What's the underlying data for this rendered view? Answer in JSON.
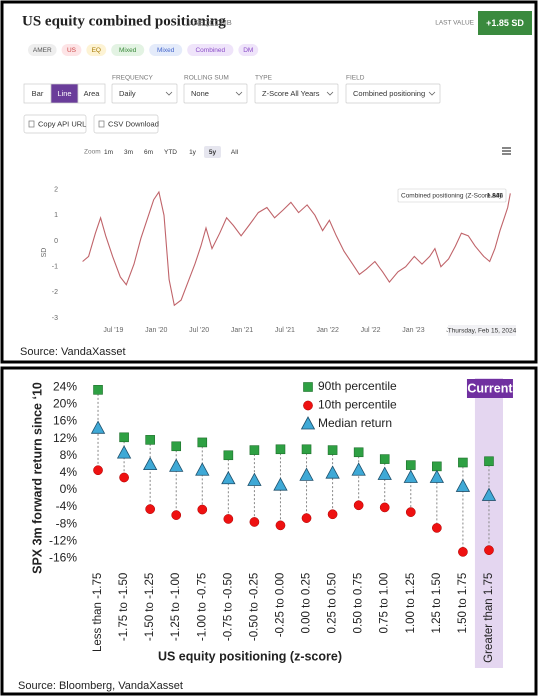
{
  "header": {
    "title": "US equity combined positioning",
    "code": "USEQCOMB",
    "last_value_label": "LAST VALUE",
    "last_value": "+1.85 SD"
  },
  "tags": [
    "AMER",
    "US",
    "EQ",
    "Mixed",
    "Mixed",
    "Combined",
    "DM"
  ],
  "chart_types": [
    "Bar",
    "Line",
    "Area"
  ],
  "selected_chart_type": "Line",
  "controls": [
    {
      "label": "FREQUENCY",
      "value": "Daily"
    },
    {
      "label": "ROLLING SUM",
      "value": "None"
    },
    {
      "label": "TYPE",
      "value": "Z-Score All Years"
    },
    {
      "label": "FIELD",
      "value": "Combined positioning"
    }
  ],
  "buttons": [
    "Copy API URL",
    "CSV Download"
  ],
  "zoom": {
    "label": "Zoom",
    "options": [
      "1m",
      "3m",
      "6m",
      "YTD",
      "1y",
      "5y",
      "All"
    ],
    "selected": "5y"
  },
  "chart_data": [
    {
      "type": "line",
      "x": [
        2019.14,
        2019.21,
        2019.29,
        2019.35,
        2019.41,
        2019.49,
        2019.58,
        2019.65,
        2019.74,
        2019.82,
        2019.9,
        2019.97,
        2020.03,
        2020.09,
        2020.15,
        2020.21,
        2020.29,
        2020.37,
        2020.45,
        2020.52,
        2020.58,
        2020.65,
        2020.74,
        2020.82,
        2020.9,
        2020.99,
        2021.08,
        2021.19,
        2021.29,
        2021.38,
        2021.48,
        2021.57,
        2021.66,
        2021.76,
        2021.85,
        2021.94,
        2022.02,
        2022.1,
        2022.19,
        2022.29,
        2022.37,
        2022.45,
        2022.55,
        2022.64,
        2022.72,
        2022.82,
        2022.91,
        2023.01,
        2023.1,
        2023.19,
        2023.25,
        2023.32,
        2023.41,
        2023.49,
        2023.56,
        2023.64,
        2023.72,
        2023.82,
        2023.89,
        2023.95,
        2024.01,
        2024.06,
        2024.1,
        2024.13
      ],
      "series": [
        {
          "color": "#c0646a",
          "values": [
            -0.8,
            -0.6,
            0.3,
            0.9,
            0.2,
            -0.6,
            -1.4,
            -1.7,
            -0.9,
            0.1,
            0.9,
            1.6,
            1.9,
            1.0,
            -1.5,
            -2.5,
            -2.3,
            -1.6,
            -0.9,
            -0.2,
            0.5,
            -0.3,
            0.3,
            0.9,
            0.6,
            0.2,
            0.6,
            1.1,
            1.3,
            0.9,
            1.2,
            1.5,
            1.1,
            1.4,
            1.0,
            0.4,
            0.8,
            0.2,
            -0.4,
            -0.9,
            -1.3,
            -1.1,
            -0.8,
            -1.2,
            -1.6,
            -1.2,
            -1.0,
            -0.6,
            -0.9,
            -0.6,
            -0.3,
            -1.0,
            -0.7,
            -0.2,
            0.3,
            0.2,
            -0.2,
            -0.6,
            -0.8,
            -0.3,
            0.4,
            0.9,
            1.3,
            1.846
          ]
        }
      ],
      "ylabel": "SD",
      "xlim": [
        2018.9,
        2024.15
      ],
      "xticks": [
        {
          "value": 2019.5,
          "label": "Jul '19"
        },
        {
          "value": 2020.0,
          "label": "Jan '20"
        },
        {
          "value": 2020.5,
          "label": "Jul '20"
        },
        {
          "value": 2021.0,
          "label": "Jan '21"
        },
        {
          "value": 2021.5,
          "label": "Jul '21"
        },
        {
          "value": 2022.0,
          "label": "Jan '22"
        },
        {
          "value": 2022.5,
          "label": "Jul '22"
        },
        {
          "value": 2023.0,
          "label": "Jan '23"
        },
        {
          "value": 2023.5,
          "label": "Jul '23"
        }
      ],
      "ylim": [
        -3.15,
        2.25
      ],
      "yticks": [
        -3,
        -2,
        -1,
        0,
        1,
        2
      ],
      "grid": false,
      "tooltip_label": "Combined positioning (Z-Score All):",
      "hover_x_label": "Thursday, Feb 15, 2024",
      "source": "Source: VandaXasset"
    },
    {
      "type": "dot",
      "categories": [
        "Less than -1.75",
        "-1.75 to -1.50",
        "-1.50 to -1.25",
        "-1.25 to -1.00",
        "-1.00 to -0.75",
        "-0.75 to -0.50",
        "-0.50 to -0.25",
        "-0.25 to 0.00",
        "0.00 to 0.25",
        "0.25 to 0.50",
        "0.50 to 0.75",
        "0.75 to 1.00",
        "1.00 to 1.25",
        "1.25 to 1.50",
        "1.50 to 1.75",
        "Greater than 1.75"
      ],
      "series": [
        {
          "name": "90th percentile",
          "color": "#2ea043",
          "marker": "square",
          "values": [
            23.4,
            12.3,
            11.7,
            10.2,
            11.1,
            8.1,
            9.3,
            9.5,
            9.5,
            9.3,
            8.8,
            7.2,
            5.8,
            5.5,
            6.4,
            6.7
          ]
        },
        {
          "name": "10th percentile",
          "color": "#ee1111",
          "marker": "circle",
          "values": [
            4.6,
            2.9,
            -4.5,
            -5.9,
            -4.6,
            -6.8,
            -7.5,
            -8.3,
            -6.6,
            -5.7,
            -3.6,
            -4.1,
            -5.2,
            -8.9,
            -14.5,
            -14.1
          ]
        },
        {
          "name": "Median return",
          "color": "#3fa9d6",
          "marker": "triangle",
          "values": [
            14.4,
            8.6,
            5.9,
            5.5,
            4.6,
            2.6,
            2.2,
            1.1,
            3.4,
            3.9,
            4.6,
            3.6,
            2.9,
            2.9,
            0.8,
            -1.3
          ]
        }
      ],
      "ylabel": "SPX 3m forward return since ‘10",
      "xlabel": "US equity positioning (z-score)",
      "ylim": [
        -17.5,
        25
      ],
      "yticks": [
        {
          "value": -16,
          "label": "-16%"
        },
        {
          "value": -12,
          "label": "-12%"
        },
        {
          "value": -8,
          "label": "-8%"
        },
        {
          "value": -4,
          "label": "-4%"
        },
        {
          "value": 0,
          "label": "0%"
        },
        {
          "value": 4,
          "label": "4%"
        },
        {
          "value": 8,
          "label": "8%"
        },
        {
          "value": 12,
          "label": "12%"
        },
        {
          "value": 16,
          "label": "16%"
        },
        {
          "value": 20,
          "label": "20%"
        },
        {
          "value": 24,
          "label": "24%"
        }
      ],
      "range_lines": true,
      "legend": "top-right",
      "highlight": {
        "label": "Current",
        "category": "Greater than 1.75"
      },
      "source": "Source: Bloomberg, VandaXasset"
    }
  ]
}
